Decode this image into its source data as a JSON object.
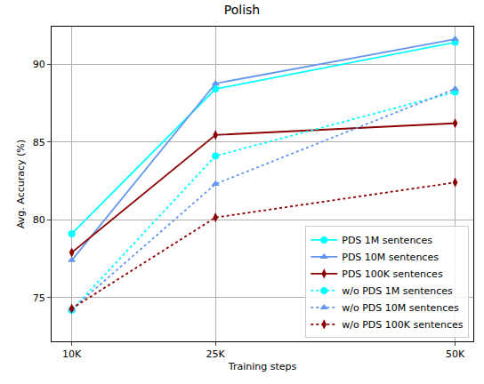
{
  "chart_data": {
    "type": "line",
    "title": "Polish",
    "x_label": "Training steps",
    "y_label": "Avg. Accuracy (%)",
    "x": [
      10000,
      25000,
      50000
    ],
    "xlim": [
      7900,
      51900
    ],
    "xticks": [
      {
        "value": 10000,
        "label": "10K"
      },
      {
        "value": 25000,
        "label": "25K"
      },
      {
        "value": 50000,
        "label": "50K"
      }
    ],
    "ylim": [
      72.2,
      92.4
    ],
    "yticks": [
      75,
      80,
      85,
      90
    ],
    "grid": true,
    "legend": "lower right",
    "series": [
      {
        "name": "PDS 1M sentences",
        "color": "#00ffff",
        "marker": "circle",
        "line_style": "solid",
        "values": [
          79.1,
          88.4,
          91.4
        ]
      },
      {
        "name": "PDS 10M sentences",
        "color": "#6495ed",
        "marker": "triangle",
        "line_style": "solid",
        "values": [
          77.4,
          88.75,
          91.6
        ]
      },
      {
        "name": "PDS 100K sentences",
        "color": "#8b0000",
        "marker": "diamond",
        "line_style": "solid",
        "values": [
          77.9,
          85.45,
          86.2
        ]
      },
      {
        "name": "w/o PDS 1M sentences",
        "color": "#00ffff",
        "marker": "circle",
        "line_style": "dotted",
        "values": [
          74.2,
          84.1,
          88.2
        ]
      },
      {
        "name": "w/o PDS 10M sentences",
        "color": "#6495ed",
        "marker": "triangle",
        "line_style": "dotted",
        "values": [
          74.25,
          82.3,
          88.4
        ]
      },
      {
        "name": "w/o PDS 100K sentences",
        "color": "#8b0000",
        "marker": "diamond",
        "line_style": "dotted",
        "values": [
          74.3,
          80.15,
          82.4
        ]
      }
    ]
  }
}
